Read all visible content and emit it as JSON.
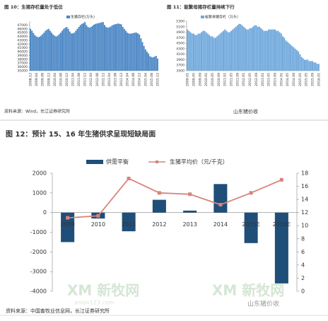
{
  "chart_data": [
    {
      "type": "bar",
      "title": "图 10：生猪存栏量处于低位",
      "categories": [
        "2008.12",
        null,
        null,
        null,
        "2009.04",
        null,
        null,
        null,
        "2009.08",
        null,
        null,
        null,
        "2009.12",
        null,
        null,
        null,
        "2010.04",
        null,
        null,
        null,
        "2010.08",
        null,
        null,
        null,
        "2010.12",
        null,
        null,
        null,
        "2011.04",
        null,
        null,
        null,
        "2011.08",
        null,
        null,
        null,
        "2011.12",
        null,
        null,
        null,
        "2012.04",
        null,
        null,
        null,
        "2012.08",
        null,
        null,
        null,
        "2012.12",
        null,
        null,
        null,
        "2013.04",
        null,
        null,
        null,
        "2013.08",
        null,
        null,
        null,
        "2013.12",
        null,
        null,
        null,
        "2014.04",
        null,
        null,
        null,
        "2014.08",
        null,
        null,
        null,
        "2014.12",
        null,
        null,
        null,
        "2015.04",
        null,
        null,
        null,
        "2015.08",
        null,
        null,
        null,
        "2015.12"
      ],
      "series": [
        {
          "name": "生猪存栏(万头)",
          "color": "#4a86c5",
          "values": [
            46000,
            45500,
            44900,
            44300,
            44000,
            43800,
            43900,
            44200,
            44600,
            45000,
            45500,
            45800,
            46000,
            45500,
            45000,
            44500,
            44200,
            44000,
            44200,
            44600,
            45000,
            45500,
            46000,
            46300,
            46500,
            46000,
            45300,
            44800,
            44800,
            45000,
            45500,
            46000,
            46500,
            47000,
            47300,
            47500,
            47800,
            47000,
            46500,
            46300,
            46500,
            46800,
            47100,
            47300,
            47400,
            47500,
            47600,
            47700,
            47800,
            47000,
            46500,
            46300,
            46400,
            46600,
            46900,
            47100,
            47200,
            47300,
            47400,
            47300,
            47200,
            46500,
            46000,
            45500,
            45000,
            44800,
            44700,
            44800,
            44900,
            45000,
            45000,
            44800,
            44500,
            43500,
            42500,
            41500,
            40600,
            40000,
            39500,
            38800,
            38600,
            38500,
            38700,
            38900,
            38200
          ]
        }
      ],
      "ylim": [
        35000,
        48000
      ],
      "yticks": [
        35000,
        36000,
        37000,
        38000,
        39000,
        40000,
        41000,
        42000,
        43000,
        44000,
        45000,
        46000,
        47000
      ]
    },
    {
      "type": "bar",
      "title": "图 11：能繁母猪存栏量持续下行",
      "categories": [
        "2009.01",
        null,
        null,
        null,
        "2009.05",
        null,
        null,
        null,
        "2009.09",
        null,
        null,
        null,
        "2010.01",
        null,
        null,
        null,
        "2010.05",
        null,
        null,
        null,
        "2010.09",
        null,
        null,
        null,
        "2011.01",
        null,
        null,
        null,
        "2011.05",
        null,
        null,
        null,
        "2011.09",
        null,
        null,
        null,
        "2012.01",
        null,
        null,
        null,
        "2012.05",
        null,
        null,
        null,
        "2012.09",
        null,
        null,
        null,
        "2013.01",
        null,
        null,
        null,
        "2013.05",
        null,
        null,
        null,
        "2013.09",
        null,
        null,
        null,
        "2014.01",
        null,
        null,
        null,
        "2014.05",
        null,
        null,
        null,
        "2014.09",
        null,
        null,
        null,
        "2015.01",
        null,
        null,
        null,
        "2015.05",
        null,
        null,
        null,
        "2015.09",
        null,
        null,
        null,
        "2016.01"
      ],
      "series": [
        {
          "name": "能繁母猪存栏（万头）",
          "color": "#6fa8dc",
          "values": [
            5000,
            4950,
            4900,
            4850,
            4850,
            4800,
            4800,
            4850,
            4850,
            4900,
            4950,
            4950,
            4900,
            4850,
            4800,
            4750,
            4750,
            4700,
            4700,
            4750,
            4800,
            4850,
            4900,
            4950,
            5000,
            4950,
            4900,
            4900,
            4950,
            5000,
            5050,
            5100,
            5150,
            5200,
            5200,
            5150,
            5100,
            5050,
            5000,
            5000,
            5050,
            5050,
            5100,
            5150,
            5150,
            5100,
            5100,
            5050,
            5000,
            4950,
            4950,
            4950,
            5000,
            5000,
            5000,
            5000,
            5000,
            4950,
            4950,
            4900,
            4850,
            4750,
            4700,
            4600,
            4550,
            4500,
            4450,
            4400,
            4350,
            4300,
            4250,
            4200,
            4100,
            4000,
            3950,
            3900,
            3900,
            3900,
            3850,
            3850,
            3850,
            3800,
            3800,
            3750,
            3750
          ]
        }
      ],
      "ylim": [
        3500,
        5300
      ],
      "yticks": [
        3500,
        3700,
        3900,
        4100,
        4300,
        4500,
        4700,
        4900,
        5100,
        5300
      ]
    },
    {
      "type": "combo",
      "title": "图 12：预计 15、16 年生猪供求呈现短缺局面",
      "categories": [
        "2009",
        "2010",
        "2011",
        "2012",
        "2013",
        "2014",
        "2015E",
        "2016E"
      ],
      "series": [
        {
          "name": "供需平衡",
          "color": "#1f4e79",
          "values": [
            -1500,
            -300,
            -950,
            650,
            100,
            1450,
            -1550,
            -3600
          ]
        },
        {
          "name": "生猪平均价（元/千克）",
          "color": "#d9837a",
          "axis": "y2",
          "values": [
            11.2,
            11.5,
            17.2,
            15.0,
            14.8,
            13.2,
            15.0,
            17.0
          ]
        }
      ],
      "ylim": [
        -4000,
        2000
      ],
      "yticks": [
        -4000,
        -3000,
        -2000,
        -1000,
        0,
        1000,
        2000
      ],
      "y2lim": [
        0,
        18
      ],
      "y2ticks": [
        0,
        2,
        4,
        6,
        8,
        10,
        12,
        14,
        16,
        18
      ]
    }
  ],
  "sources": [
    "资料来源：Wind，长江证券研究所",
    "资料来源：中国畜牧业信息网，长江证券研究所"
  ],
  "watermarks": [
    "XM 新牧网",
    "xmsn123.com",
    "XM 新牧网",
    "山东猪价收"
  ]
}
